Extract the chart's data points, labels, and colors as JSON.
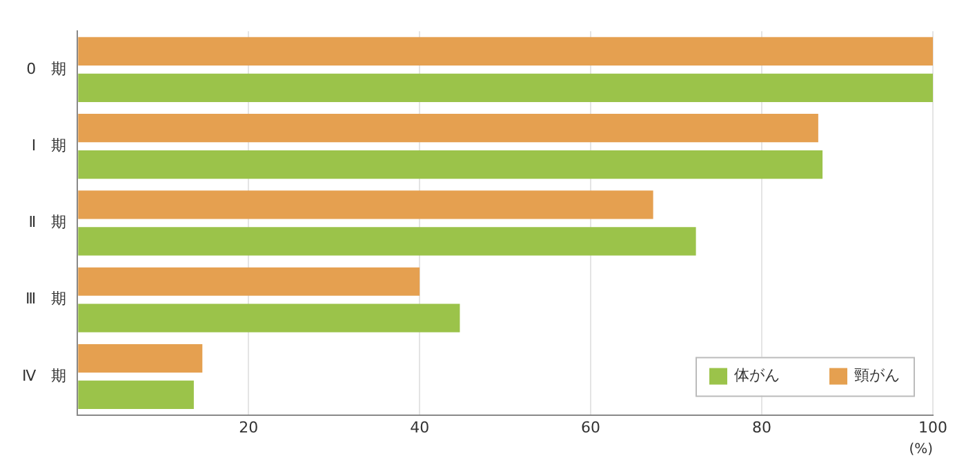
{
  "chart_data": {
    "type": "bar",
    "orientation": "horizontal",
    "categories": [
      "0　期",
      "Ⅰ　期",
      "Ⅱ　期",
      "Ⅲ　期",
      "Ⅳ　期"
    ],
    "series": [
      {
        "name": "頸がん",
        "color": "#e5a050",
        "values": [
          100,
          86.6,
          67.3,
          40.0,
          14.6
        ]
      },
      {
        "name": "体がん",
        "color": "#9bc34a",
        "values": [
          100,
          87.1,
          72.3,
          44.7,
          13.6
        ]
      }
    ],
    "xlim": [
      0,
      100
    ],
    "xticks": [
      {
        "value": 0,
        "label": null
      },
      20,
      40,
      60,
      80,
      100
    ],
    "xlabel": "(%)",
    "grid": "x",
    "legend": "bottom right"
  }
}
